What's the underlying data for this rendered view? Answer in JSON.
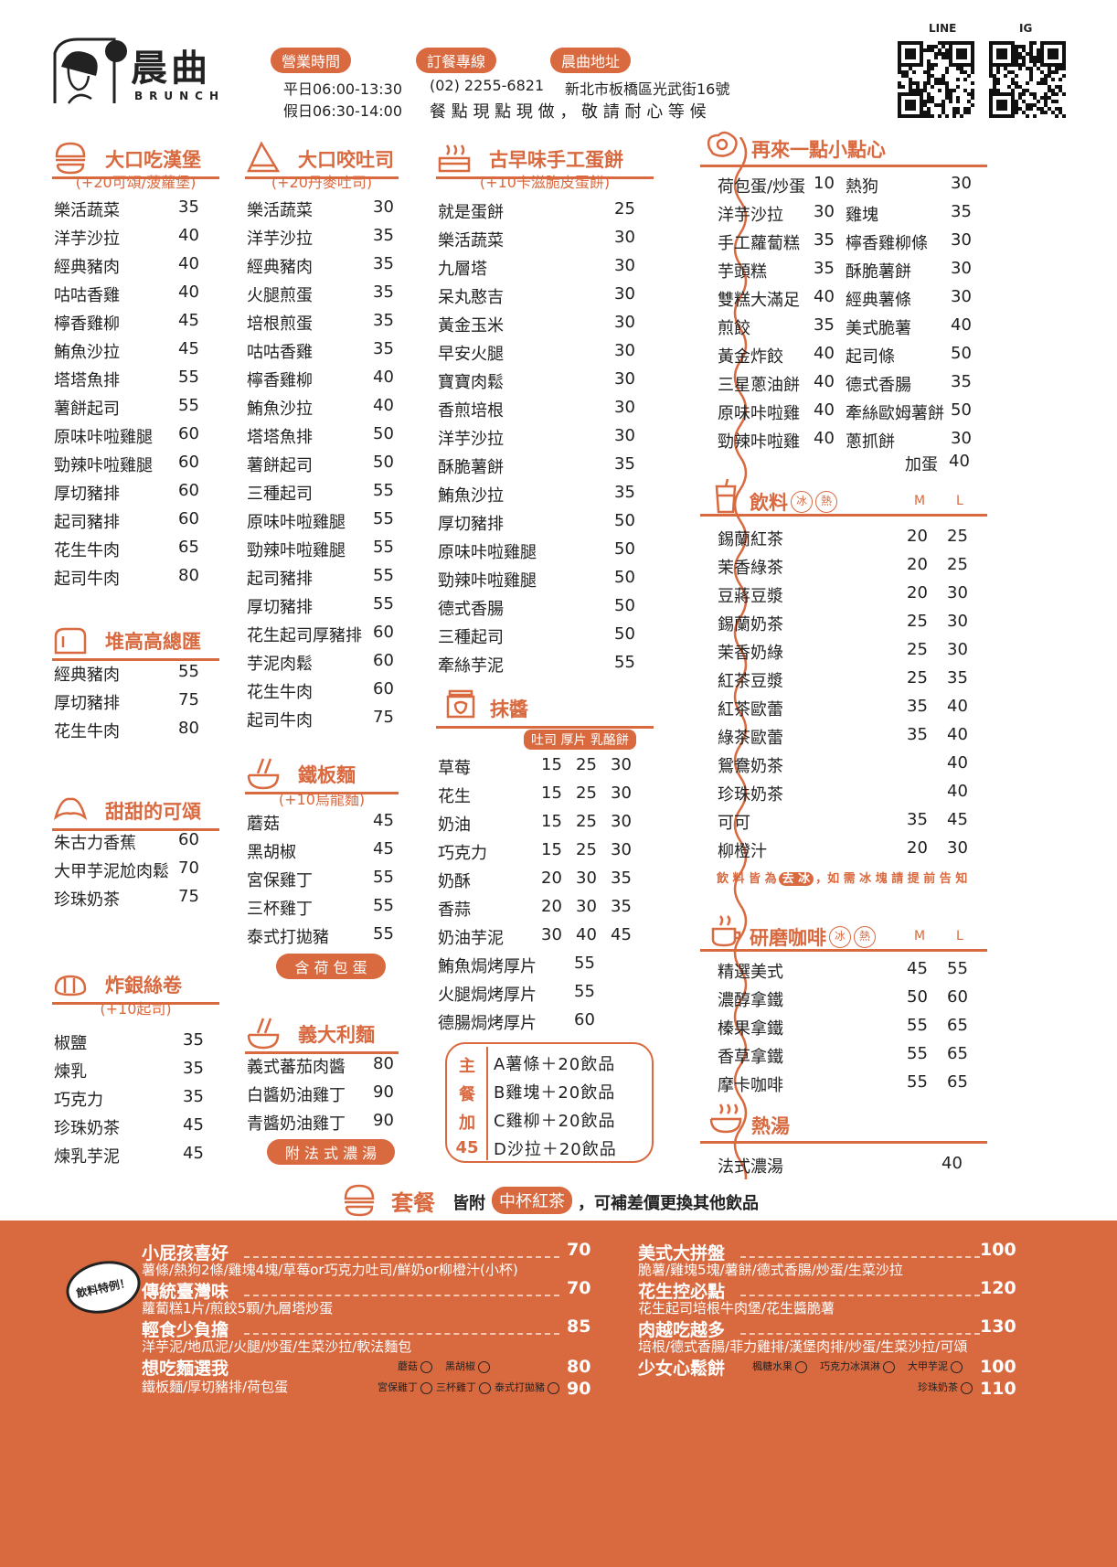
{
  "brand": {
    "name": "晨曲",
    "sub": "BRUNCH"
  },
  "header": {
    "hours_label": "營業時間",
    "weekday": "平日06:00-13:30",
    "weekend": "假日06:30-14:00",
    "phone_label": "訂餐專線",
    "phone": "(02) 2255-6821",
    "address_label": "晨曲地址",
    "address": "新北市板橋區光武街16號",
    "notice": "餐 點 現 點 現 做 ， 敬 請 耐 心 等 候",
    "qr_line_label": "LINE",
    "qr_ig_label": "IG"
  },
  "accent": "#d9693f",
  "col1": [
    {
      "title": "大口吃漢堡",
      "subtitle": "(+20可頌/菠蘿堡)",
      "items": [
        [
          "樂活蔬菜",
          "35"
        ],
        [
          "洋芋沙拉",
          "40"
        ],
        [
          "經典豬肉",
          "40"
        ],
        [
          "咕咕香雞",
          "40"
        ],
        [
          "檸香雞柳",
          "45"
        ],
        [
          "鮪魚沙拉",
          "45"
        ],
        [
          "塔塔魚排",
          "55"
        ],
        [
          "薯餅起司",
          "55"
        ],
        [
          "原味咔啦雞腿",
          "60"
        ],
        [
          "勁辣咔啦雞腿",
          "60"
        ],
        [
          "厚切豬排",
          "60"
        ],
        [
          "起司豬排",
          "60"
        ],
        [
          "花生牛肉",
          "65"
        ],
        [
          "起司牛肉",
          "80"
        ]
      ]
    },
    {
      "title": "堆高高總匯",
      "items": [
        [
          "經典豬肉",
          "55"
        ],
        [
          "厚切豬排",
          "75"
        ],
        [
          "花生牛肉",
          "80"
        ]
      ]
    },
    {
      "title": "甜甜的可頌",
      "items": [
        [
          "朱古力香蕉",
          "60"
        ],
        [
          "大甲芋泥尬肉鬆",
          "70"
        ],
        [
          "珍珠奶茶",
          "75"
        ]
      ]
    },
    {
      "title": "炸銀絲卷",
      "subtitle": "(+10起司)",
      "items": [
        [
          "椒鹽",
          "35"
        ],
        [
          "煉乳",
          "35"
        ],
        [
          "巧克力",
          "35"
        ],
        [
          "珍珠奶茶",
          "45"
        ],
        [
          "煉乳芋泥",
          "45"
        ]
      ]
    }
  ],
  "col2": [
    {
      "title": "大口咬吐司",
      "subtitle": "(+20丹麥吐司)",
      "items": [
        [
          "樂活蔬菜",
          "30"
        ],
        [
          "洋芋沙拉",
          "35"
        ],
        [
          "經典豬肉",
          "35"
        ],
        [
          "火腿煎蛋",
          "35"
        ],
        [
          "培根煎蛋",
          "35"
        ],
        [
          "咕咕香雞",
          "35"
        ],
        [
          "檸香雞柳",
          "40"
        ],
        [
          "鮪魚沙拉",
          "40"
        ],
        [
          "塔塔魚排",
          "50"
        ],
        [
          "薯餅起司",
          "50"
        ],
        [
          "三種起司",
          "55"
        ],
        [
          "原味咔啦雞腿",
          "55"
        ],
        [
          "勁辣咔啦雞腿",
          "55"
        ],
        [
          "起司豬排",
          "55"
        ],
        [
          "厚切豬排",
          "55"
        ],
        [
          "花生起司厚豬排",
          "60"
        ],
        [
          "芋泥肉鬆",
          "60"
        ],
        [
          "花生牛肉",
          "60"
        ],
        [
          "起司牛肉",
          "75"
        ]
      ]
    },
    {
      "title": "鐵板麵",
      "subtitle": "(+10烏龍麵)",
      "items": [
        [
          "蘑菇",
          "45"
        ],
        [
          "黑胡椒",
          "45"
        ],
        [
          "宮保雞丁",
          "55"
        ],
        [
          "三杯雞丁",
          "55"
        ],
        [
          "泰式打拋豬",
          "55"
        ]
      ],
      "note": "含 荷 包 蛋"
    },
    {
      "title": "義大利麵",
      "items": [
        [
          "義式蕃茄肉醬",
          "80"
        ],
        [
          "白醬奶油雞丁",
          "90"
        ],
        [
          "青醬奶油雞丁",
          "90"
        ]
      ],
      "note": "附 法 式 濃 湯"
    }
  ],
  "col3": {
    "omelet": {
      "title": "古早味手工蛋餅",
      "subtitle": "(+10卡滋脆皮蛋餅)",
      "items": [
        [
          "就是蛋餅",
          "25"
        ],
        [
          "樂活蔬菜",
          "30"
        ],
        [
          "九層塔",
          "30"
        ],
        [
          "呆丸憨吉",
          "30"
        ],
        [
          "黃金玉米",
          "30"
        ],
        [
          "早安火腿",
          "30"
        ],
        [
          "寶寶肉鬆",
          "30"
        ],
        [
          "香煎培根",
          "30"
        ],
        [
          "洋芋沙拉",
          "30"
        ],
        [
          "酥脆薯餅",
          "35"
        ],
        [
          "鮪魚沙拉",
          "35"
        ],
        [
          "厚切豬排",
          "50"
        ],
        [
          "原味咔啦雞腿",
          "50"
        ],
        [
          "勁辣咔啦雞腿",
          "50"
        ],
        [
          "德式香腸",
          "50"
        ],
        [
          "三種起司",
          "50"
        ],
        [
          "牽絲芋泥",
          "55"
        ]
      ]
    },
    "spread": {
      "title": "抹醬",
      "columns": "吐司 厚片 乳酪餅",
      "items": [
        [
          "草莓",
          "15",
          "25",
          "30"
        ],
        [
          "花生",
          "15",
          "25",
          "30"
        ],
        [
          "奶油",
          "15",
          "25",
          "30"
        ],
        [
          "巧克力",
          "15",
          "25",
          "30"
        ],
        [
          "奶酥",
          "20",
          "30",
          "35"
        ],
        [
          "香蒜",
          "20",
          "30",
          "35"
        ],
        [
          "奶油芋泥",
          "30",
          "40",
          "45"
        ],
        [
          "鮪魚焗烤厚片",
          "55"
        ],
        [
          "火腿焗烤厚片",
          "55"
        ],
        [
          "德腸焗烤厚片",
          "60"
        ]
      ]
    },
    "addon": {
      "label": [
        "主",
        "餐",
        "加",
        "45"
      ],
      "items": [
        "A薯條＋20飲品",
        "B雞塊＋20飲品",
        "C雞柳＋20飲品",
        "D沙拉＋20飲品"
      ]
    }
  },
  "col4": {
    "snacks": {
      "title": "再來一點小點心",
      "left": [
        [
          "荷包蛋/炒蛋",
          "10"
        ],
        [
          "洋芋沙拉",
          "30"
        ],
        [
          "手工蘿蔔糕",
          "35"
        ],
        [
          "芋頭糕",
          "35"
        ],
        [
          "雙糕大滿足",
          "40"
        ],
        [
          "煎餃",
          "35"
        ],
        [
          "黃金炸餃",
          "40"
        ],
        [
          "三星蔥油餅",
          "40"
        ],
        [
          "原味咔啦雞",
          "40"
        ],
        [
          "勁辣咔啦雞",
          "40"
        ]
      ],
      "right": [
        [
          "熱狗",
          "30"
        ],
        [
          "雞塊",
          "35"
        ],
        [
          "檸香雞柳條",
          "30"
        ],
        [
          "酥脆薯餅",
          "30"
        ],
        [
          "經典薯條",
          "30"
        ],
        [
          "美式脆薯",
          "40"
        ],
        [
          "起司條",
          "50"
        ],
        [
          "德式香腸",
          "35"
        ],
        [
          "牽絲歐姆薯餅",
          "50"
        ],
        [
          "蔥抓餅",
          "30"
        ]
      ],
      "extra": [
        "加蛋",
        "40"
      ]
    },
    "drinks": {
      "title": "飲料",
      "ice": "冰",
      "hot": "熱",
      "m": "M",
      "l": "L",
      "items": [
        [
          "錫蘭紅茶",
          "20",
          "25"
        ],
        [
          "茉香綠茶",
          "20",
          "25"
        ],
        [
          "豆蔣豆漿",
          "20",
          "30"
        ],
        [
          "錫蘭奶茶",
          "25",
          "30"
        ],
        [
          "茉香奶綠",
          "25",
          "30"
        ],
        [
          "紅茶豆漿",
          "25",
          "35"
        ],
        [
          "紅茶歐蕾",
          "35",
          "40"
        ],
        [
          "綠茶歐蕾",
          "35",
          "40"
        ],
        [
          "鴛鴦奶茶",
          "",
          "40"
        ],
        [
          "珍珠奶茶",
          "",
          "40"
        ],
        [
          "可可",
          "35",
          "45"
        ],
        [
          "柳橙汁",
          "20",
          "30"
        ]
      ],
      "note_a": "飲 料 皆 為",
      "note_hl": "去 冰",
      "note_b": "，如 需 冰 塊 請 提 前 告 知"
    },
    "coffee": {
      "title": "研磨咖啡",
      "ice": "冰",
      "hot": "熱",
      "m": "M",
      "l": "L",
      "items": [
        [
          "精選美式",
          "45",
          "55"
        ],
        [
          "濃醇拿鐵",
          "50",
          "60"
        ],
        [
          "榛果拿鐵",
          "55",
          "65"
        ],
        [
          "香草拿鐵",
          "55",
          "65"
        ],
        [
          "摩卡咖啡",
          "55",
          "65"
        ]
      ]
    },
    "soup": {
      "title": "熱湯",
      "items": [
        [
          "法式濃湯",
          "40"
        ]
      ]
    }
  },
  "sets": {
    "title": "套餐",
    "lead": "皆附",
    "highlight": "中杯紅茶",
    "tail": "，可補差價更換其他飲品",
    "bubble": "飲料特例！",
    "left": [
      {
        "name": "小屁孩喜好",
        "price": "70",
        "desc": "薯條/熱狗2條/雞塊4塊/草莓or巧克力吐司/鮮奶or柳橙汁(小杯)"
      },
      {
        "name": "傳統臺灣味",
        "price": "70",
        "desc": "蘿蔔糕1片/煎餃5顆/九層塔炒蛋"
      },
      {
        "name": "輕食少負擔",
        "price": "85",
        "desc": "洋芋泥/地瓜泥/火腿/炒蛋/生菜沙拉/軟法麵包"
      },
      {
        "name": "想吃麵選我",
        "price": "80",
        "price2": "90",
        "desc": "鐵板麵/厚切豬排/荷包蛋",
        "opts1": [
          "蘑菇",
          "黑胡椒"
        ],
        "opts2": [
          "宮保雞丁",
          "三杯雞丁",
          "泰式打拋豬"
        ]
      }
    ],
    "right": [
      {
        "name": "美式大拼盤",
        "price": "100",
        "desc": "脆薯/雞塊5塊/薯餅/德式香腸/炒蛋/生菜沙拉"
      },
      {
        "name": "花生控必點",
        "price": "120",
        "desc": "花生起司培根牛肉堡/花生醬脆薯"
      },
      {
        "name": "肉越吃越多",
        "price": "130",
        "desc": "培根/德式香腸/菲力雞排/漢堡肉排/炒蛋/生菜沙拉/可頌"
      },
      {
        "name": "少女心鬆餅",
        "price": "100",
        "price2": "110",
        "opts1": [
          "楓糖水果",
          "巧克力冰淇淋",
          "大甲芋泥"
        ],
        "opts2": [
          "珍珠奶茶"
        ]
      }
    ]
  }
}
